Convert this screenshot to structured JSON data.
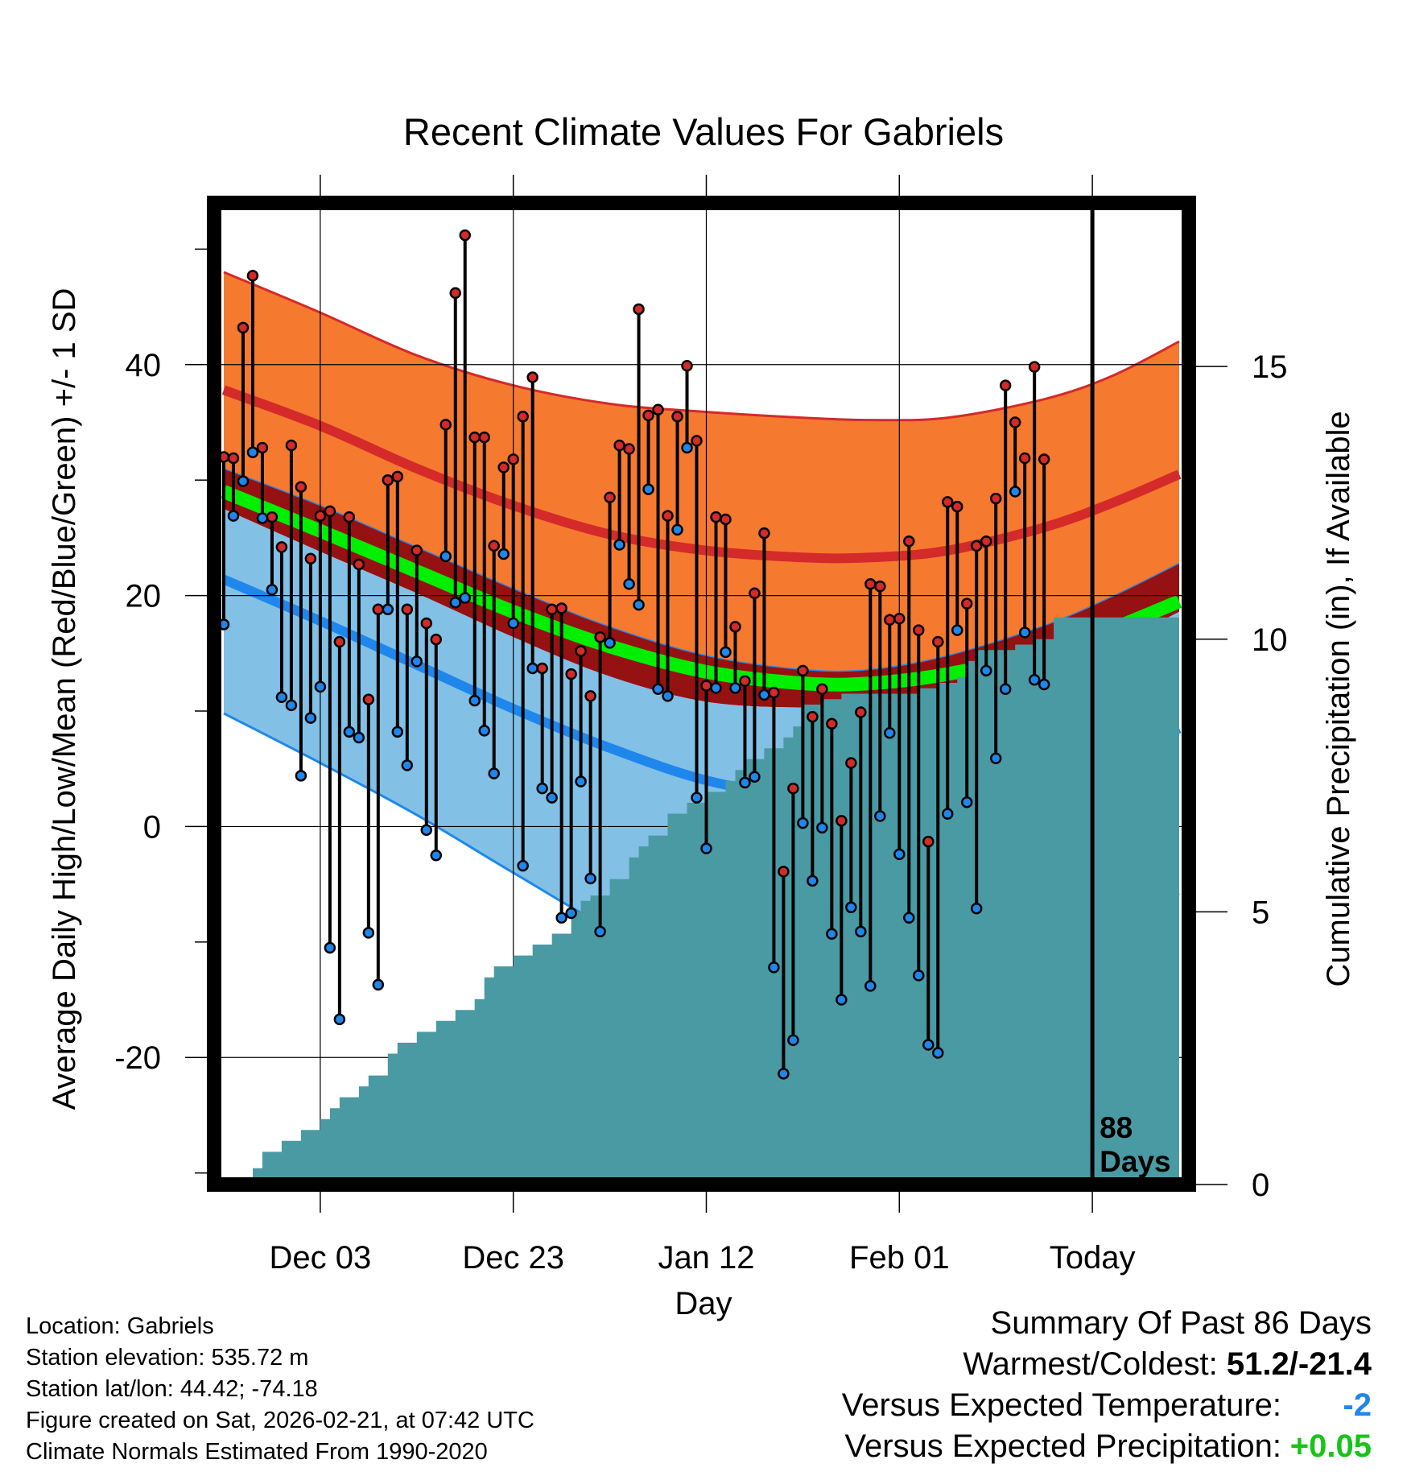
{
  "chart_data": {
    "type": "line",
    "title": "Recent Climate Values For Gabriels",
    "xlabel": "Day",
    "ylabel_left": "Average Daily High/Low/Mean (Red/Blue/Green) +/- 1 SD",
    "ylabel_right": "Cumulative Precipitation (in), If Available",
    "x_tick_labels": [
      "Dec 03",
      "Dec 23",
      "Jan 12",
      "Feb 01",
      "Today"
    ],
    "x_tick_days": [
      10,
      30,
      50,
      70,
      90
    ],
    "x_range_days": [
      -1,
      100
    ],
    "ylim_left": [
      -31,
      54
    ],
    "y_ticks_left": [
      "40",
      "20",
      "0",
      "-20"
    ],
    "ylim_right": [
      0,
      18
    ],
    "y_ticks_right": [
      "15",
      "10",
      "5",
      "0"
    ],
    "today_label": "88\nDays",
    "today_label_line1": "88",
    "today_label_line2": "Days",
    "normals": {
      "days": [
        0,
        10,
        20,
        30,
        40,
        50,
        60,
        67,
        75,
        85,
        92,
        99
      ],
      "high_mean": [
        37.8,
        34.7,
        31.0,
        27.8,
        25.3,
        23.9,
        23.3,
        23.3,
        23.9,
        25.9,
        28.0,
        30.5
      ],
      "high_plus_sd": [
        48.0,
        44.5,
        40.8,
        38.2,
        36.6,
        35.9,
        35.4,
        35.2,
        35.4,
        37.0,
        39.0,
        42.0
      ],
      "high_minus_sd": [
        31.0,
        27.8,
        24.2,
        20.6,
        17.3,
        14.8,
        13.6,
        13.6,
        14.8,
        17.4,
        19.9,
        22.8
      ],
      "mean": [
        29.0,
        25.6,
        22.1,
        18.6,
        15.6,
        13.4,
        12.4,
        12.4,
        13.2,
        15.1,
        17.1,
        19.5
      ],
      "low_mean": [
        21.4,
        17.8,
        14.0,
        10.2,
        6.8,
        4.0,
        2.5,
        2.0,
        2.5,
        4.2,
        6.0,
        8.5
      ],
      "low_plus_sd": [
        27.5,
        23.8,
        20.2,
        16.4,
        13.0,
        10.8,
        10.3,
        10.6,
        11.6,
        13.4,
        15.6,
        18.6
      ],
      "low_minus_sd": [
        9.8,
        5.5,
        1.0,
        -4.0,
        -8.8,
        -12.2,
        -13.8,
        -13.6,
        -12.2,
        -10.0,
        -8.8,
        -5.8
      ]
    },
    "series": [
      {
        "name": "Daily High",
        "color": "#c21f1f",
        "values": [
          32.0,
          31.9,
          43.2,
          47.7,
          32.8,
          26.8,
          24.2,
          33.0,
          29.4,
          23.2,
          26.9,
          27.3,
          16.0,
          26.8,
          22.7,
          11.0,
          18.8,
          30.0,
          30.3,
          18.8,
          23.9,
          17.6,
          16.2,
          34.8,
          46.2,
          51.2,
          33.7,
          33.7,
          24.3,
          31.1,
          31.8,
          35.5,
          38.9,
          13.7,
          18.8,
          18.9,
          13.2,
          15.2,
          11.3,
          16.4,
          28.5,
          33.0,
          32.7,
          44.8,
          35.6,
          36.1,
          26.9,
          35.5,
          39.9,
          33.4,
          12.2,
          26.8,
          26.6,
          17.3,
          12.6,
          20.2,
          25.4,
          11.6,
          -3.9,
          3.3,
          13.5,
          9.5,
          11.9,
          8.9,
          0.5,
          5.5,
          9.9,
          21.0,
          20.8,
          17.9,
          18.0,
          24.7,
          17.0,
          -1.3,
          16.0,
          28.1,
          27.7,
          19.3,
          24.3,
          24.7,
          28.4,
          38.2,
          35.0,
          31.9,
          39.8,
          31.8
        ]
      },
      {
        "name": "Daily Low",
        "color": "#1f87ec",
        "values": [
          17.5,
          26.9,
          29.9,
          32.4,
          26.7,
          20.5,
          11.2,
          10.5,
          4.4,
          9.4,
          12.1,
          -10.5,
          -16.7,
          8.2,
          7.7,
          -9.2,
          -13.7,
          18.8,
          8.2,
          5.3,
          14.3,
          -0.3,
          -2.5,
          23.4,
          19.4,
          19.8,
          10.9,
          8.3,
          4.6,
          23.6,
          17.6,
          -3.4,
          13.7,
          3.3,
          2.5,
          -7.9,
          -7.5,
          3.9,
          -4.5,
          -9.1,
          15.9,
          24.4,
          21.0,
          19.2,
          29.2,
          11.9,
          11.3,
          25.7,
          32.8,
          2.5,
          -1.9,
          12.0,
          15.1,
          12.0,
          3.8,
          4.3,
          11.4,
          -12.2,
          -21.4,
          -18.5,
          0.3,
          -4.7,
          -0.1,
          -9.3,
          -15.0,
          -7.0,
          -9.1,
          -13.8,
          0.9,
          8.1,
          -2.4,
          -7.9,
          -12.9,
          -18.9,
          -19.6,
          1.1,
          17.0,
          2.1,
          -7.1,
          13.5,
          5.9,
          11.9,
          29.0,
          16.8,
          12.7,
          12.3
        ]
      }
    ],
    "precip_cumulative": {
      "days": [
        2,
        3,
        4,
        6,
        8,
        10,
        11,
        12,
        14,
        15,
        17,
        18,
        20,
        22,
        24,
        26,
        27,
        28,
        30,
        32,
        34,
        36,
        37,
        38,
        40,
        42,
        43,
        44,
        46,
        48,
        50,
        52,
        53,
        54,
        56,
        58,
        59,
        60,
        62,
        64,
        66,
        68,
        70,
        72,
        74,
        76,
        77,
        78,
        80,
        82,
        84,
        86,
        88,
        99
      ],
      "values": [
        0.0,
        0.3,
        0.6,
        0.8,
        1.0,
        1.2,
        1.4,
        1.6,
        1.8,
        2.0,
        2.4,
        2.6,
        2.8,
        3.0,
        3.2,
        3.4,
        3.8,
        4.0,
        4.2,
        4.4,
        4.6,
        5.0,
        5.2,
        5.3,
        5.6,
        6.0,
        6.2,
        6.4,
        6.8,
        7.0,
        7.2,
        7.4,
        7.6,
        7.8,
        8.0,
        8.2,
        8.4,
        8.8,
        8.9,
        9.0,
        9.0,
        9.0,
        9.0,
        9.1,
        9.2,
        9.3,
        9.6,
        9.8,
        9.8,
        9.9,
        10.0,
        10.4,
        10.4,
        10.4
      ]
    }
  },
  "location_info": {
    "location": "Location: Gabriels",
    "elevation": "Station elevation: 535.72 m",
    "latlon": "Station lat/lon: 44.42; -74.18",
    "created": "Figure created on Sat, 2026-02-21, at 07:42 UTC",
    "normals": "Climate Normals Estimated From 1990-2020"
  },
  "summary": {
    "heading": "Summary Of Past 86 Days",
    "warmest_label": "Warmest/Coldest: ",
    "warmest_value": "51.2/-21.4",
    "temp_label": "Versus Expected Temperature:",
    "temp_value": "-2",
    "precip_label": "Versus Expected Precipitation:",
    "precip_value": "+0.05"
  },
  "colors": {
    "high_band": "#f57a30",
    "high_line": "#d42a2a",
    "mid_band": "#961111",
    "mean_line": "#00ee00",
    "low_band": "#82c0e6",
    "low_line": "#1f87ec",
    "precip_fill": "#4a9aa4",
    "frame": "#000000"
  }
}
